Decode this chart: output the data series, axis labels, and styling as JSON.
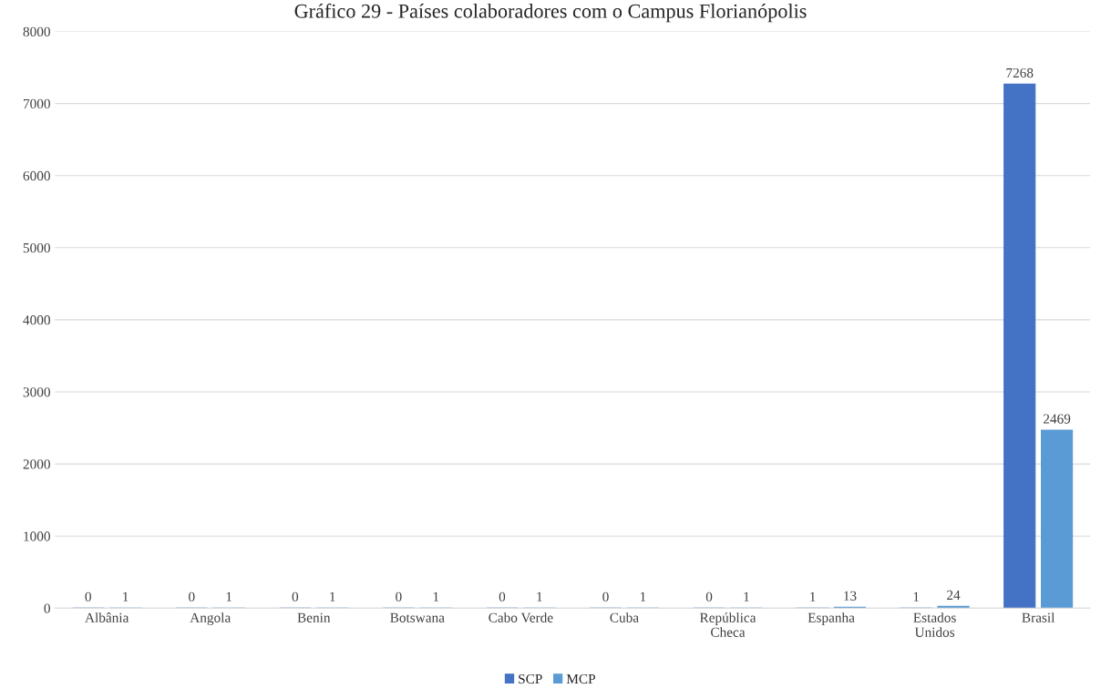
{
  "chart_data": {
    "type": "bar",
    "title": "Gráfico 29 - Países colaboradores com o Campus Florianópolis",
    "categories": [
      "Albânia",
      "Angola",
      "Benin",
      "Botswana",
      "Cabo Verde",
      "Cuba",
      "República\nCheca",
      "Espanha",
      "Estados\nUnidos",
      "Brasil"
    ],
    "series": [
      {
        "name": "SCP",
        "color": "#4472c4",
        "values": [
          0,
          0,
          0,
          0,
          0,
          0,
          0,
          1,
          1,
          7268
        ]
      },
      {
        "name": "MCP",
        "color": "#5b9bd5",
        "values": [
          1,
          1,
          1,
          1,
          1,
          1,
          1,
          13,
          24,
          2469
        ]
      }
    ],
    "ylim": [
      0,
      8000
    ],
    "yticks": [
      0,
      1000,
      2000,
      3000,
      4000,
      5000,
      6000,
      7000,
      8000
    ],
    "grid": "y",
    "legend": "bottom",
    "data_labels": true
  }
}
